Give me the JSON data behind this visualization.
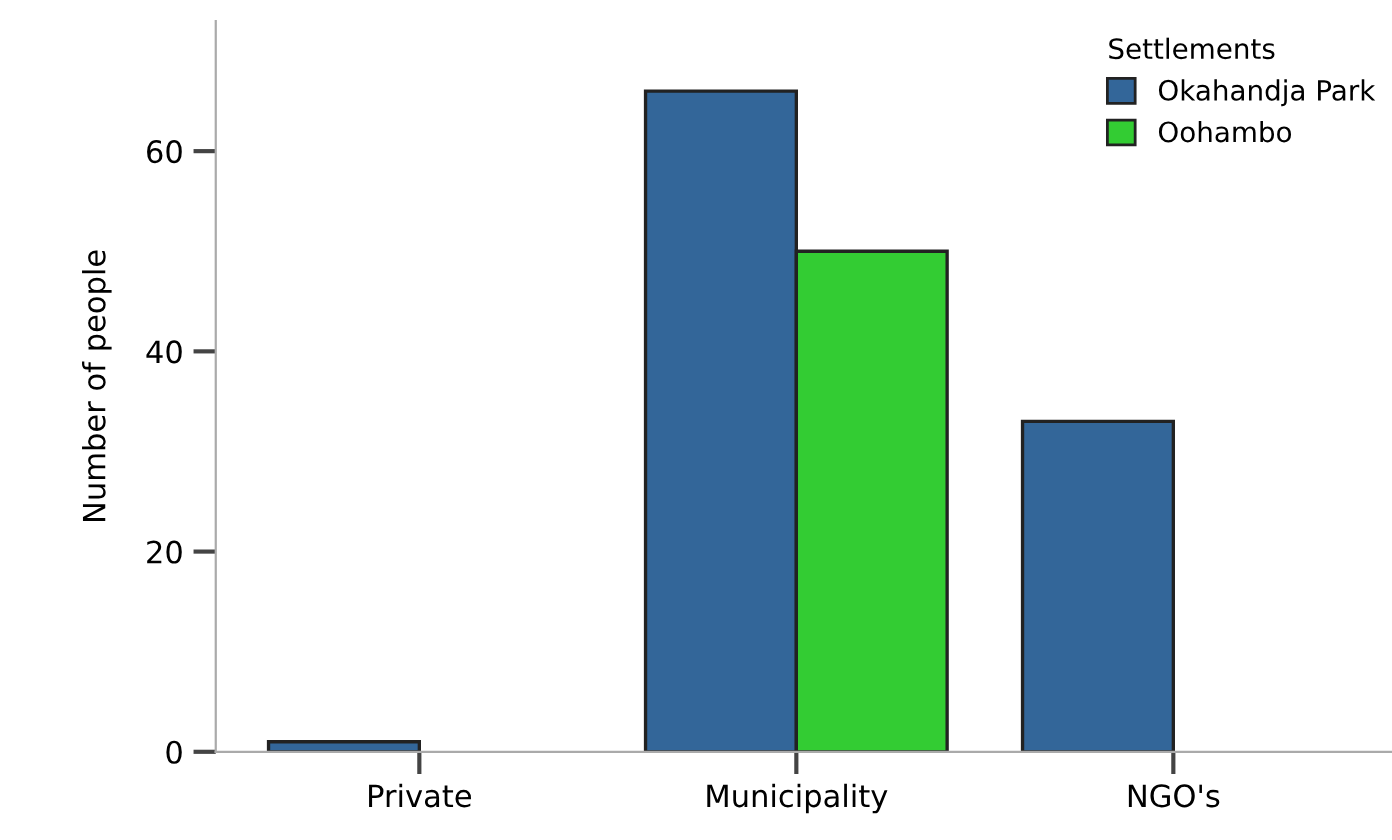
{
  "chart_data": {
    "type": "bar",
    "ylabel": "Number of people",
    "legend_title": "Settlements",
    "legend": "top right",
    "grid": false,
    "categories": [
      "Private",
      "Municipality",
      "NGO's"
    ],
    "series": [
      {
        "name": "Okahandja Park",
        "color": "#336699",
        "values": [
          1,
          66,
          33
        ]
      },
      {
        "name": "Oohambo",
        "color": "#33cc33",
        "values": [
          null,
          50,
          null
        ]
      }
    ],
    "ylim": [
      0,
      73
    ],
    "yticks": [
      0,
      20,
      40,
      60
    ]
  }
}
